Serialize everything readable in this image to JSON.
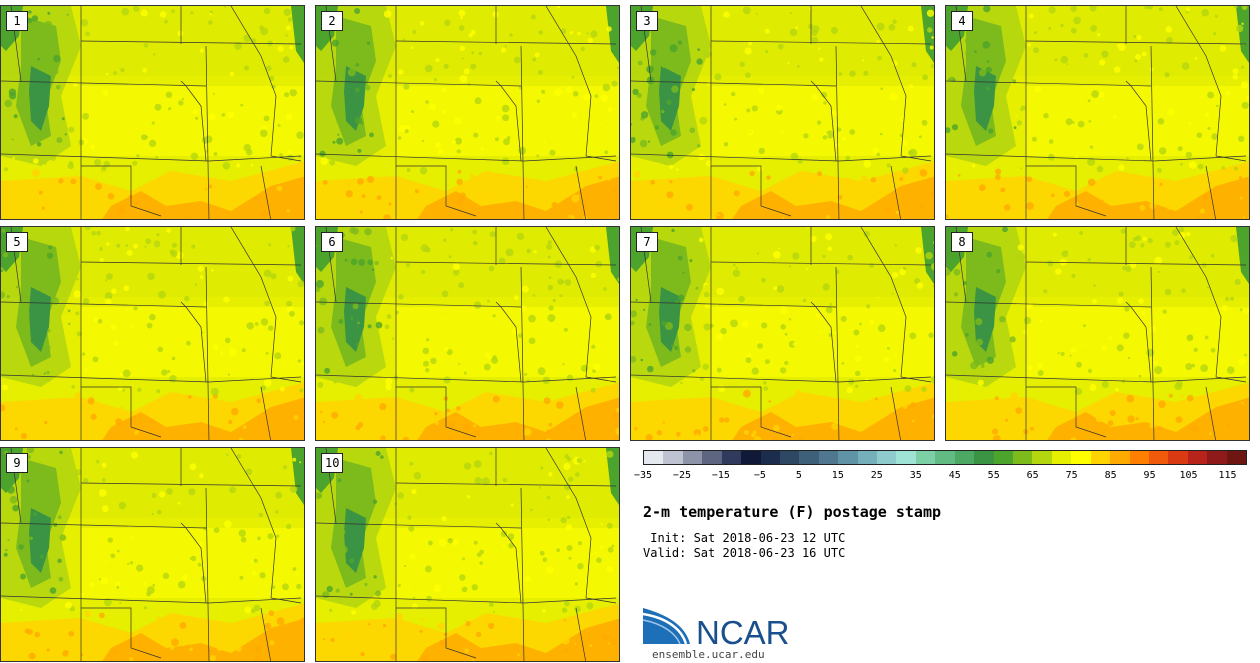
{
  "panels": [
    {
      "label": "1"
    },
    {
      "label": "2"
    },
    {
      "label": "3"
    },
    {
      "label": "4"
    },
    {
      "label": "5"
    },
    {
      "label": "6"
    },
    {
      "label": "7"
    },
    {
      "label": "8"
    },
    {
      "label": "9"
    },
    {
      "label": "10"
    }
  ],
  "colorbar": {
    "colors": [
      "#e6e8ef",
      "#bfc3d1",
      "#8d93a9",
      "#5d6580",
      "#2f3a5c",
      "#101a38",
      "#1c2c4c",
      "#2e4863",
      "#3f6079",
      "#4f7890",
      "#5f93a5",
      "#74afba",
      "#8dcbcd",
      "#9ee3d6",
      "#7dd0a6",
      "#63bb84",
      "#4da864",
      "#3a9444",
      "#4ca42c",
      "#7dba1c",
      "#b4d60f",
      "#e6ef00",
      "#ffff00",
      "#ffd400",
      "#ffaa00",
      "#ff7f00",
      "#f05a0a",
      "#d93a12",
      "#b8241a",
      "#8f1a1a",
      "#6e1612"
    ],
    "tick_labels": [
      "−35",
      "−25",
      "−15",
      "−5",
      "5",
      "15",
      "25",
      "35",
      "45",
      "55",
      "65",
      "75",
      "85",
      "95",
      "105",
      "115"
    ]
  },
  "title": "2-m temperature (F) postage stamp",
  "init_line": " Init: Sat 2018-06-23 12 UTC",
  "valid_line": "Valid: Sat 2018-06-23 16 UTC",
  "logo": {
    "wordmark": "NCAR",
    "url": "ensemble.ucar.edu"
  }
}
